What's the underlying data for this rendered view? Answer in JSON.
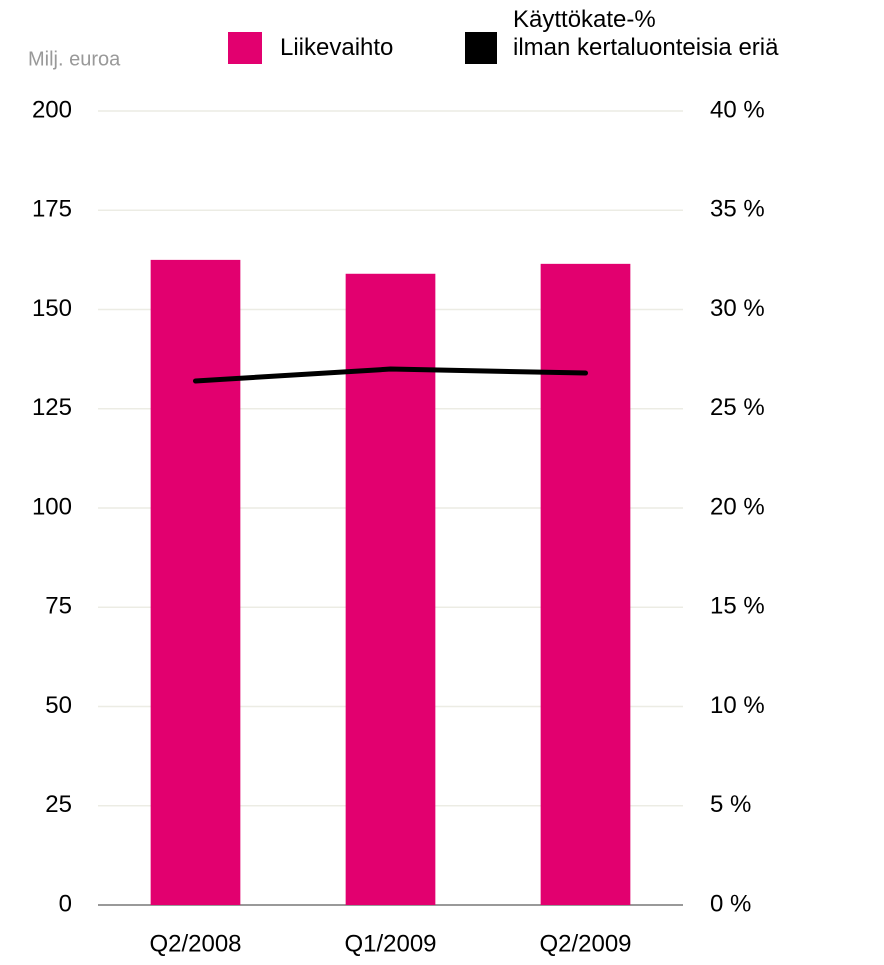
{
  "chart_data": {
    "type": "bar_line",
    "y_label": "Milj. euroa",
    "categories": [
      "Q2/2008",
      "Q1/2009",
      "Q2/2009"
    ],
    "series": [
      {
        "name": "Liikevaihto",
        "color": "#e2006f",
        "type": "bar",
        "values": [
          162.5,
          159,
          161.5
        ]
      },
      {
        "name": "Käyttökate-%\nilman kertaluonteisia eriä",
        "color": "#000000",
        "type": "line",
        "axis": "y2",
        "values": [
          26.4,
          27,
          26.8
        ]
      }
    ],
    "ylim": [
      0,
      200
    ],
    "yticks": [
      0,
      25,
      50,
      75,
      100,
      125,
      150,
      175,
      200
    ],
    "y2lim": [
      0,
      40
    ],
    "y2ticks": [
      {
        "value": 0,
        "label": "0 %"
      },
      {
        "value": 5,
        "label": "5 %"
      },
      {
        "value": 10,
        "label": "10 %"
      },
      {
        "value": 15,
        "label": "15 %"
      },
      {
        "value": 20,
        "label": "20 %"
      },
      {
        "value": 25,
        "label": "25 %"
      },
      {
        "value": 30,
        "label": "30 %"
      },
      {
        "value": 35,
        "label": "35 %"
      },
      {
        "value": 40,
        "label": "40 %"
      }
    ],
    "grid": true
  }
}
